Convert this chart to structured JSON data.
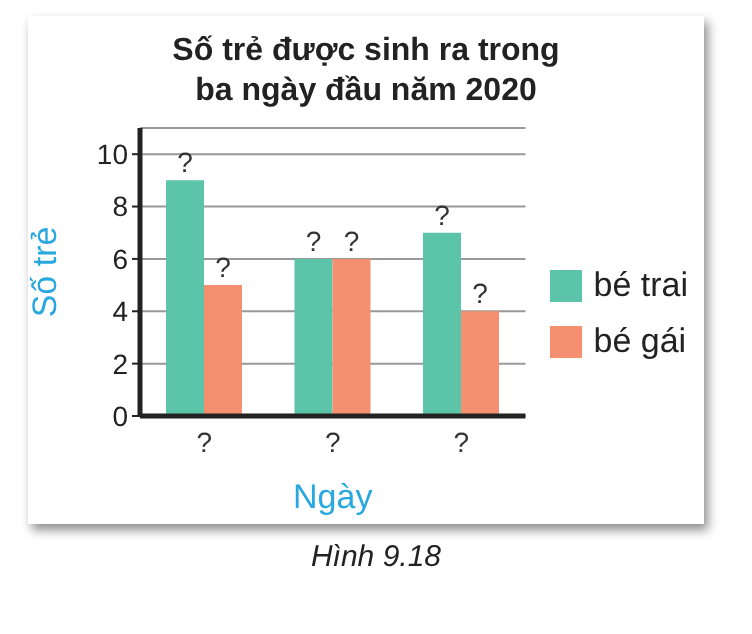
{
  "chart_data": {
    "type": "bar",
    "title": "Số trẻ được sinh ra trong ba ngày đầu năm 2020",
    "xlabel": "Ngày",
    "ylabel": "Số trẻ",
    "categories": [
      "?",
      "?",
      "?"
    ],
    "series": [
      {
        "name": "bé trai",
        "color": "#5cc4a8",
        "values": [
          9,
          6,
          7
        ],
        "value_labels": [
          "?",
          "?",
          "?"
        ]
      },
      {
        "name": "bé gái",
        "color": "#f4906f",
        "values": [
          5,
          6,
          4
        ],
        "value_labels": [
          "?",
          "?",
          "?"
        ]
      }
    ],
    "ylim": [
      0,
      11
    ],
    "yticks": [
      0,
      2,
      4,
      6,
      8,
      10
    ],
    "grid": "y",
    "legend": "right",
    "annotations": [
      "Hình 9.18"
    ]
  }
}
